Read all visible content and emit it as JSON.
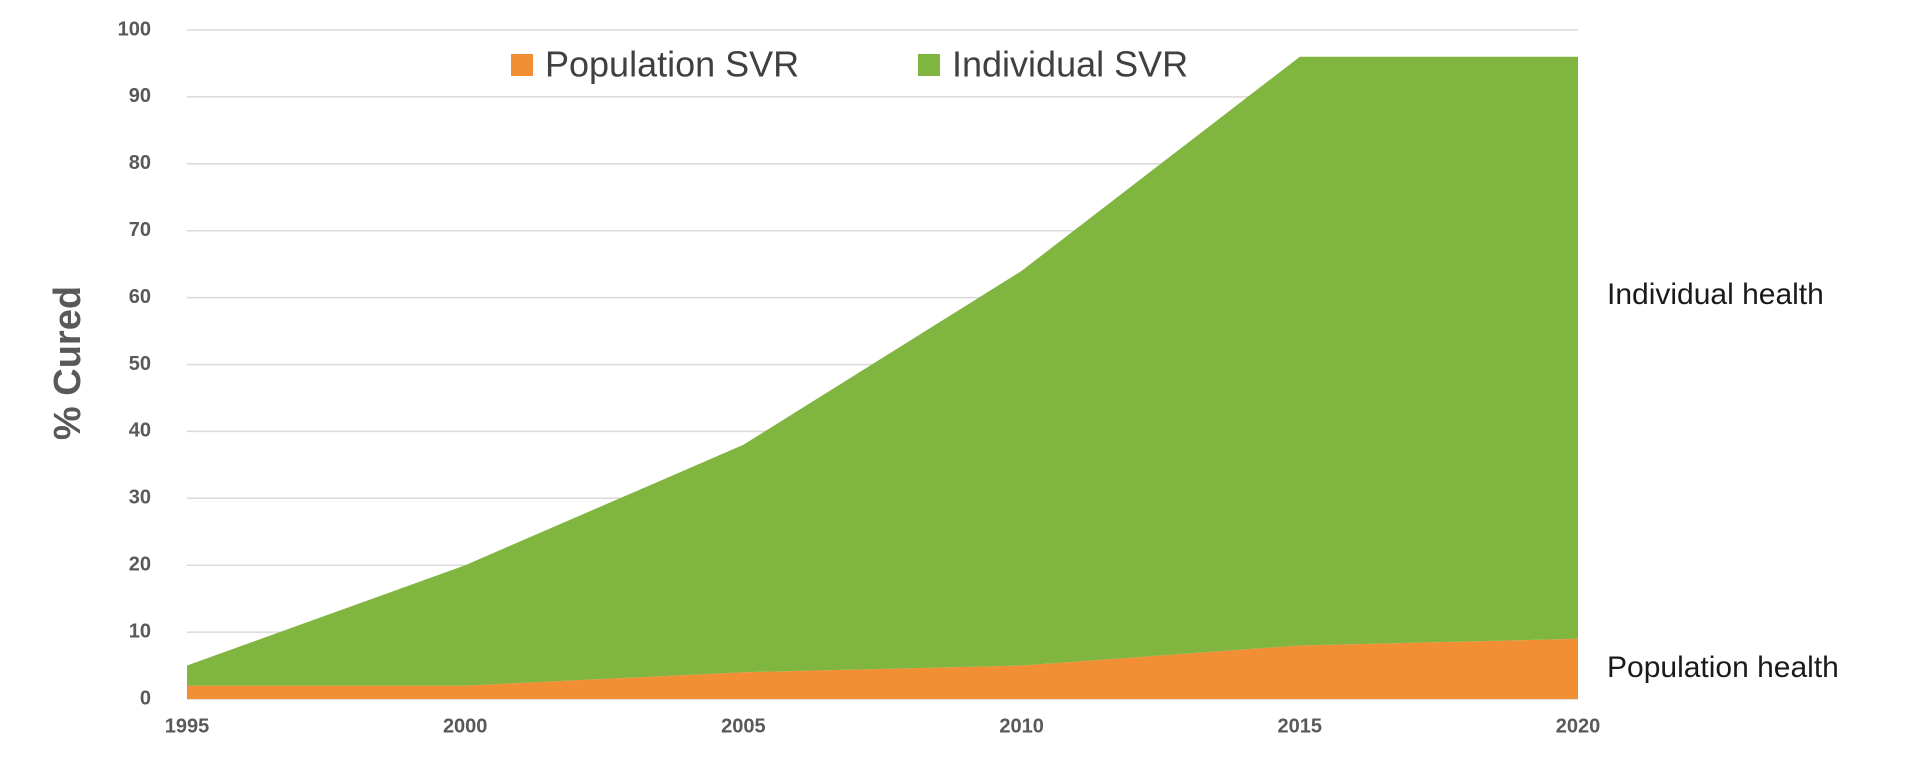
{
  "chart_data": {
    "type": "stacked_area",
    "x": [
      1995,
      2000,
      2005,
      2010,
      2015,
      2020
    ],
    "series": [
      {
        "name": "Population SVR",
        "color": "#f28e34",
        "values": [
          2,
          2,
          4,
          5,
          8,
          9
        ]
      },
      {
        "name": "Individual SVR",
        "color": "#80b540",
        "values": [
          3,
          18,
          34,
          59,
          88,
          87
        ]
      }
    ],
    "xlim": [
      1995,
      2020
    ],
    "xticks": [
      1995,
      2000,
      2005,
      2010,
      2015,
      2020
    ],
    "ylim": [
      0,
      100
    ],
    "yticks": [
      0,
      10,
      20,
      30,
      40,
      50,
      60,
      70,
      80,
      90,
      100
    ],
    "ylabel": "% Cured",
    "annotations": [
      "Individual health",
      "Population health"
    ],
    "grid": true,
    "legend": "top"
  }
}
